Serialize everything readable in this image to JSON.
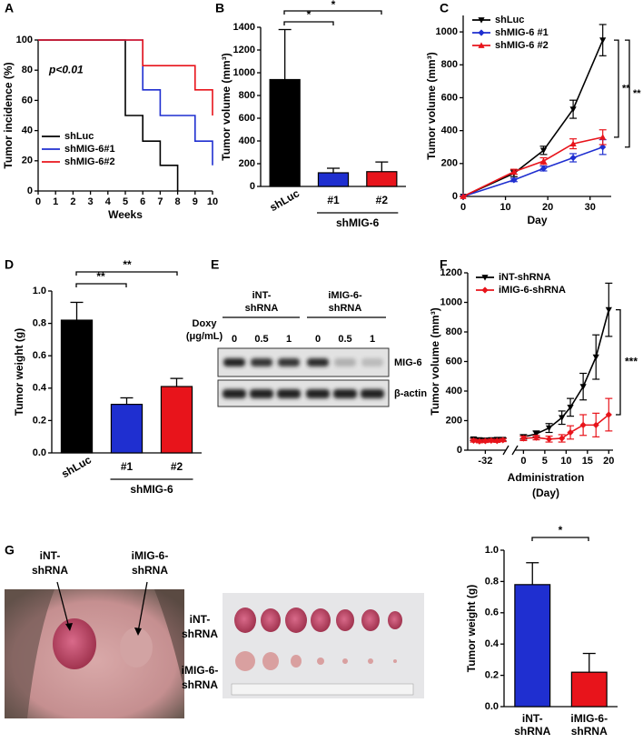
{
  "panel_labels": [
    "A",
    "B",
    "C",
    "D",
    "E",
    "F",
    "G"
  ],
  "chart_data": [
    {
      "type": "line",
      "y_label": "Tumor incidence (%)",
      "x_label": "Weeks",
      "annotation": "p<0.01",
      "xlim": [
        0,
        10
      ],
      "xticks": [
        0,
        1,
        2,
        3,
        4,
        5,
        6,
        7,
        8,
        9,
        10
      ],
      "ylim": [
        0,
        100
      ],
      "yticks": [
        0,
        20,
        40,
        60,
        80,
        100
      ],
      "legend": "lower left",
      "series": [
        {
          "name": "shLuc",
          "color": "#000000",
          "x": [
            0,
            5,
            5,
            6,
            6,
            7,
            7,
            8,
            8
          ],
          "values": [
            100,
            100,
            50,
            50,
            33,
            33,
            17,
            17,
            0
          ]
        },
        {
          "name": "shMIG-6#1",
          "color": "#1f2fd0",
          "x": [
            0,
            6,
            6,
            7,
            7,
            9,
            9,
            10,
            10
          ],
          "values": [
            100,
            100,
            67,
            67,
            50,
            50,
            33,
            33,
            17
          ]
        },
        {
          "name": "shMIG-6#2",
          "color": "#e8141b",
          "x": [
            0,
            6,
            6,
            9,
            9,
            10,
            10
          ],
          "values": [
            100,
            100,
            83,
            83,
            67,
            67,
            50
          ]
        }
      ]
    },
    {
      "type": "bar",
      "y_label": "Tumor volume (mm³)",
      "categories": [
        "shLuc",
        "#1",
        "#2"
      ],
      "group_label": "shMIG-6",
      "colors": [
        "#000000",
        "#1f2fd0",
        "#e8141b"
      ],
      "values": [
        940,
        120,
        130
      ],
      "errors": [
        440,
        40,
        85
      ],
      "ylim": [
        0,
        1400
      ],
      "yticks": [
        0,
        200,
        400,
        600,
        800,
        1000,
        1200,
        1400
      ],
      "significance": [
        "*",
        "*"
      ]
    },
    {
      "type": "line",
      "y_label": "Tumor volume (mm³)",
      "x_label": "Day",
      "x": [
        0,
        12,
        19,
        26,
        33
      ],
      "xlim": [
        0,
        35
      ],
      "xticks": [
        0,
        10,
        20,
        30
      ],
      "ylim": [
        0,
        1100
      ],
      "yticks": [
        0,
        200,
        400,
        600,
        800,
        1000
      ],
      "legend": "upper left",
      "significance": [
        "**",
        "**"
      ],
      "series": [
        {
          "name": "shLuc",
          "color": "#000000",
          "marker": "v",
          "values": [
            0,
            140,
            280,
            530,
            950
          ],
          "errors": [
            0,
            20,
            25,
            55,
            95
          ]
        },
        {
          "name": "shMIG-6 #1",
          "color": "#1f2fd0",
          "marker": "D",
          "values": [
            0,
            100,
            170,
            235,
            300
          ],
          "errors": [
            0,
            10,
            15,
            25,
            45
          ]
        },
        {
          "name": "shMIG-6 #2",
          "color": "#e8141b",
          "marker": "^",
          "values": [
            0,
            150,
            215,
            320,
            360
          ],
          "errors": [
            0,
            15,
            20,
            30,
            45
          ]
        }
      ]
    },
    {
      "type": "bar",
      "y_label": "Tumor weight (g)",
      "categories": [
        "shLuc",
        "#1",
        "#2"
      ],
      "group_label": "shMIG-6",
      "colors": [
        "#000000",
        "#1f2fd0",
        "#e8141b"
      ],
      "values": [
        0.82,
        0.3,
        0.41
      ],
      "errors": [
        0.11,
        0.04,
        0.05
      ],
      "ylim": [
        0,
        1.0
      ],
      "yticks": [
        {
          "value": 0,
          "label": "0.0"
        },
        0.2,
        0.4,
        0.6,
        0.8,
        {
          "value": 1,
          "label": "1.0"
        }
      ],
      "significance": [
        "**",
        "**"
      ]
    },
    {
      "type": "line",
      "y_label": "Tumor volume (mm³)",
      "x_label": [
        "Administration",
        "(Day)"
      ],
      "annotation": "***",
      "x": [
        -34,
        -33,
        -32,
        -31,
        -30,
        -29,
        0,
        3,
        6,
        9,
        11,
        14,
        17,
        20
      ],
      "xlim": [
        [
          -35,
          -28.5
        ],
        [
          -2,
          21
        ]
      ],
      "xticks": [
        -32,
        0,
        5,
        10,
        15,
        20
      ],
      "ylim": [
        0,
        1200
      ],
      "yticks": [
        0,
        200,
        400,
        600,
        800,
        1000,
        1200
      ],
      "legend": "upper left",
      "series": [
        {
          "name": "iNT-shRNA",
          "color": "#000000",
          "marker": "v",
          "values": [
            75,
            70,
            68,
            70,
            72,
            72,
            90,
            110,
            150,
            220,
            290,
            430,
            630,
            950
          ],
          "errors": [
            10,
            10,
            10,
            10,
            10,
            10,
            15,
            20,
            30,
            45,
            60,
            90,
            150,
            180
          ]
        },
        {
          "name": "iMIG-6-shRNA",
          "color": "#e8141b",
          "marker": "D",
          "values": [
            65,
            60,
            62,
            65,
            63,
            68,
            80,
            85,
            75,
            80,
            120,
            170,
            170,
            240
          ],
          "errors": [
            10,
            10,
            10,
            10,
            10,
            10,
            15,
            15,
            20,
            25,
            45,
            70,
            80,
            110
          ]
        }
      ]
    },
    {
      "type": "bar",
      "y_label": "Tumor weight (g)",
      "categories": [
        [
          "iNT-",
          "shRNA"
        ],
        [
          "iMIG-6-",
          "shRNA"
        ]
      ],
      "colors": [
        "#1f2fd0",
        "#e8141b"
      ],
      "values": [
        0.78,
        0.22
      ],
      "errors": [
        0.14,
        0.12
      ],
      "ylim": [
        0,
        1.0
      ],
      "yticks": [
        {
          "value": 0,
          "label": "0.0"
        },
        0.2,
        0.4,
        0.6,
        0.8,
        {
          "value": 1,
          "label": "1.0"
        }
      ],
      "significance": [
        "*"
      ]
    }
  ],
  "blot": {
    "groups": [
      [
        "iNT-",
        "shRNA"
      ],
      [
        "iMIG-6-",
        "shRNA"
      ]
    ],
    "treatment": [
      "Doxy",
      "(μg/mL)"
    ],
    "doses": [
      "0",
      "0.5",
      "1",
      "0",
      "0.5",
      "1"
    ],
    "bands": [
      "MIG-6",
      "β-actin"
    ]
  },
  "photo_left_labels": [
    [
      "iNT-",
      "shRNA"
    ],
    [
      "iMIG-6-",
      "shRNA"
    ]
  ],
  "photo_middle_labels": [
    [
      "iNT-",
      "shRNA"
    ],
    [
      "iMIG-6-",
      "shRNA"
    ]
  ]
}
